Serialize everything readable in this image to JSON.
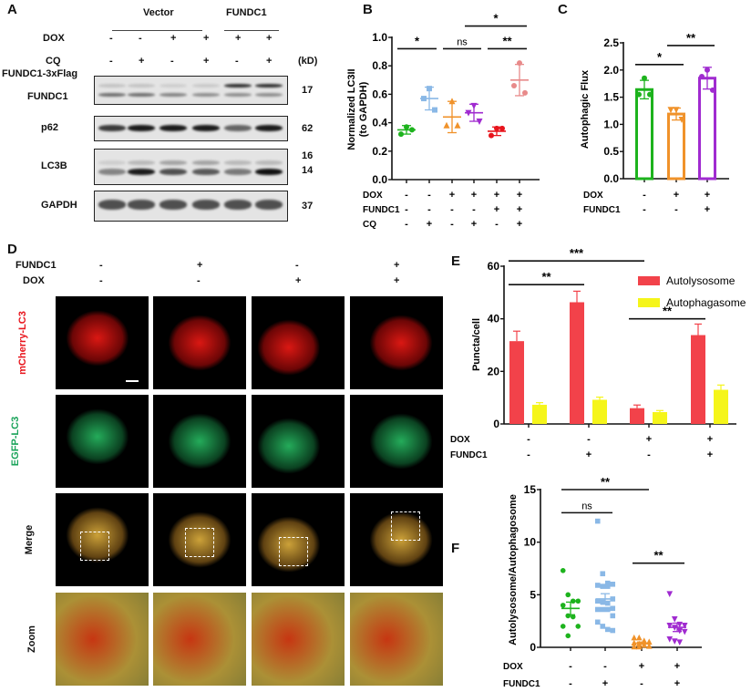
{
  "panel_letters": {
    "a": "A",
    "b": "B",
    "c": "C",
    "d": "D",
    "e": "E",
    "f": "F"
  },
  "panel_a": {
    "groups": [
      "Vector",
      "FUNDC1"
    ],
    "row_labels": {
      "dox": "DOX",
      "cq": "CQ"
    },
    "dox": [
      "-",
      "-",
      "+",
      "+",
      "+",
      "+"
    ],
    "cq": [
      "-",
      "+",
      "-",
      "+",
      "-",
      "+"
    ],
    "kd_label": "(kD)",
    "blots": [
      {
        "labels": [
          "FUNDC1-3xFlag",
          "FUNDC1"
        ],
        "kd": [
          "17"
        ]
      },
      {
        "labels": [
          "p62"
        ],
        "kd": [
          "62"
        ]
      },
      {
        "labels": [
          "LC3B"
        ],
        "kd": [
          "16",
          "14"
        ]
      },
      {
        "labels": [
          "GAPDH"
        ],
        "kd": [
          "37"
        ]
      }
    ]
  },
  "panel_d": {
    "row_labels": {
      "fundc1": "FUNDC1",
      "dox": "DOX"
    },
    "fundc1": [
      "-",
      "+",
      "-",
      "+"
    ],
    "dox": [
      "-",
      "-",
      "+",
      "+"
    ],
    "channels": [
      {
        "label": "mCherry-LC3",
        "color": "#e8141c"
      },
      {
        "label": "EGFP-LC3",
        "color": "#1aa35a"
      },
      {
        "label": "Merge",
        "color": "#111111"
      },
      {
        "label": "Zoom",
        "color": "#111111"
      }
    ]
  },
  "chart_data": [
    {
      "id": "B",
      "type": "scatter",
      "ylabel": "Normalized LC3II (to GAPDH)",
      "ylabel_lines": [
        "Normalized LC3II",
        "(to GAPDH)"
      ],
      "ylim": [
        0,
        1.0
      ],
      "yticks": [
        "0.0",
        "0.2",
        "0.4",
        "0.6",
        "0.8",
        "1.0"
      ],
      "conditions": [
        {
          "label": "DOX",
          "values": [
            "-",
            "-",
            "+",
            "+",
            "+",
            "+"
          ]
        },
        {
          "label": "FUNDC1",
          "values": [
            "-",
            "-",
            "-",
            "-",
            "+",
            "+"
          ]
        },
        {
          "label": "CQ",
          "values": [
            "-",
            "+",
            "-",
            "+",
            "-",
            "+"
          ]
        }
      ],
      "groups": [
        {
          "color": "#1db31d",
          "marker": "circle",
          "mean": 0.35,
          "sd": 0.03,
          "points": [
            0.37,
            0.32,
            0.35
          ]
        },
        {
          "color": "#8ab8e6",
          "marker": "square",
          "mean": 0.57,
          "sd": 0.08,
          "points": [
            0.64,
            0.57,
            0.49
          ]
        },
        {
          "color": "#f0922a",
          "marker": "triangle",
          "mean": 0.44,
          "sd": 0.11,
          "points": [
            0.55,
            0.38,
            0.38
          ]
        },
        {
          "color": "#a02bd0",
          "marker": "triangle-down",
          "mean": 0.47,
          "sd": 0.06,
          "points": [
            0.52,
            0.47,
            0.41
          ]
        },
        {
          "color": "#e8141c",
          "marker": "circle",
          "mean": 0.34,
          "sd": 0.03,
          "points": [
            0.36,
            0.31,
            0.36
          ]
        },
        {
          "color": "#e88a8a",
          "marker": "circle",
          "mean": 0.7,
          "sd": 0.11,
          "points": [
            0.82,
            0.66,
            0.61
          ]
        }
      ],
      "significance": [
        {
          "from": 0,
          "to": 1,
          "label": "*",
          "level": 0.92
        },
        {
          "from": 2,
          "to": 3,
          "label": "ns",
          "level": 0.92
        },
        {
          "from": 4,
          "to": 5,
          "label": "**",
          "level": 0.92
        },
        {
          "from": 3,
          "to": 5,
          "label": "*",
          "level": 1.08
        }
      ]
    },
    {
      "id": "C",
      "type": "bar",
      "ylabel": "Autophagic Flux",
      "ylim": [
        0,
        2.5
      ],
      "yticks": [
        "0.0",
        "0.5",
        "1.0",
        "1.5",
        "2.0",
        "2.5"
      ],
      "conditions": [
        {
          "label": "DOX",
          "values": [
            "-",
            "+",
            "+"
          ]
        },
        {
          "label": "FUNDC1",
          "values": [
            "-",
            "-",
            "+"
          ]
        }
      ],
      "groups": [
        {
          "color": "#1db31d",
          "marker": "circle",
          "mean": 1.64,
          "sd": 0.17,
          "points": [
            1.85,
            1.55,
            1.55
          ]
        },
        {
          "color": "#f0922a",
          "marker": "triangle-down",
          "mean": 1.19,
          "sd": 0.11,
          "points": [
            1.27,
            1.27,
            1.09
          ]
        },
        {
          "color": "#a02bd0",
          "marker": "circle",
          "mean": 1.85,
          "sd": 0.2,
          "points": [
            2.0,
            1.88,
            1.63
          ]
        }
      ],
      "significance": [
        {
          "from": 0,
          "to": 1,
          "label": "*",
          "level": 2.1
        },
        {
          "from": 1,
          "to": 2,
          "label": "**",
          "level": 2.45
        }
      ]
    },
    {
      "id": "E",
      "type": "bar",
      "ylabel": "Puncta/cell",
      "ylim": [
        0,
        60
      ],
      "yticks": [
        "0",
        "20",
        "40",
        "60"
      ],
      "legend_position": "top-right",
      "conditions": [
        {
          "label": "DOX",
          "values": [
            "-",
            "-",
            "+",
            "+"
          ]
        },
        {
          "label": "FUNDC1",
          "values": [
            "-",
            "+",
            "-",
            "+"
          ]
        }
      ],
      "series": [
        {
          "name": "Autolysosome",
          "color": "#f2424a",
          "values": [
            31.5,
            46.3,
            6.0,
            33.8
          ],
          "sd": [
            3.8,
            4.2,
            1.2,
            4.2
          ]
        },
        {
          "name": "Autophagasome",
          "color": "#f5f51a",
          "values": [
            7.3,
            9.2,
            4.5,
            13.0
          ],
          "sd": [
            0.8,
            1.0,
            0.6,
            1.8
          ]
        }
      ],
      "significance": [
        {
          "from": 0,
          "to": 1,
          "label": "**",
          "level": 53
        },
        {
          "from": 0,
          "to": 2,
          "label": "***",
          "level": 62
        },
        {
          "from": 2,
          "to": 3,
          "label": "**",
          "level": 40
        }
      ]
    },
    {
      "id": "F",
      "type": "scatter",
      "ylabel": "Autolysosome/Autophagosome",
      "ylim": [
        0,
        15
      ],
      "yticks": [
        "0",
        "5",
        "10",
        "15"
      ],
      "conditions": [
        {
          "label": "DOX",
          "values": [
            "-",
            "-",
            "+",
            "+"
          ]
        },
        {
          "label": "FUNDC1",
          "values": [
            "-",
            "+",
            "-",
            "+"
          ]
        }
      ],
      "groups": [
        {
          "color": "#1db31d",
          "marker": "circle",
          "mean": 3.7,
          "sd": 0.6,
          "points": [
            7.3,
            5.0,
            4.4,
            4.4,
            4.0,
            3.0,
            2.9,
            2.0,
            2.0,
            1.1
          ]
        },
        {
          "color": "#8ab8e6",
          "marker": "square",
          "mean": 4.6,
          "sd": 0.5,
          "points": [
            12.0,
            7.0,
            6.1,
            6.0,
            5.9,
            5.8,
            5.8,
            4.6,
            4.4,
            4.3,
            4.2,
            3.7,
            3.6,
            3.6,
            3.6,
            3.0,
            2.4,
            2.0,
            1.7,
            1.6
          ]
        },
        {
          "color": "#f0922a",
          "marker": "triangle",
          "mean": 0.4,
          "sd": 0.1,
          "points": [
            0.9,
            0.9,
            0.6,
            0.5,
            0.4,
            0.3,
            0.2,
            0.1,
            0.05,
            0.05
          ]
        },
        {
          "color": "#a02bd0",
          "marker": "triangle-down",
          "mean": 1.9,
          "sd": 0.4,
          "points": [
            5.1,
            2.7,
            2.2,
            2.1,
            2.1,
            1.9,
            1.6,
            1.5,
            0.8,
            0.6,
            0.5
          ]
        }
      ],
      "significance": [
        {
          "from": 0,
          "to": 1,
          "label": "ns",
          "level": 12.8
        },
        {
          "from": 0,
          "to": 2,
          "label": "**",
          "level": 15
        },
        {
          "from": 2,
          "to": 3,
          "label": "**",
          "level": 8
        }
      ]
    }
  ]
}
